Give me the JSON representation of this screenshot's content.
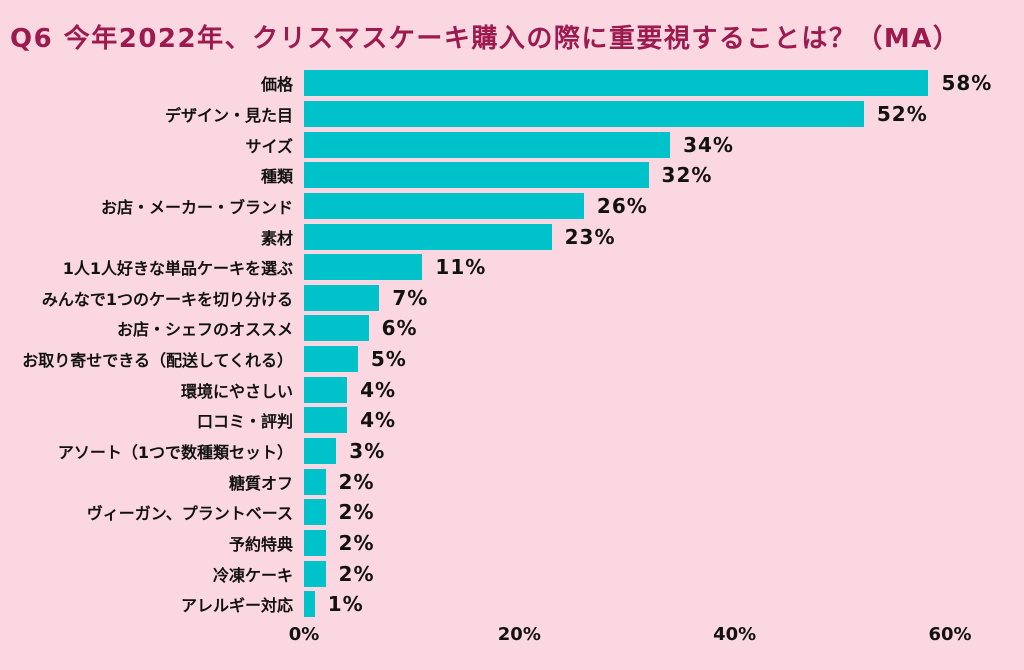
{
  "chart_data": {
    "type": "bar",
    "orientation": "horizontal",
    "title": "Q6 今年2022年、クリスマスケーキ購入の際に重要視することは？（MA）",
    "categories": [
      "価格",
      "デザイン・見た目",
      "サイズ",
      "種類",
      "お店・メーカー・ブランド",
      "素材",
      "1人1人好きな単品ケーキを選ぶ",
      "みんなで1つのケーキを切り分ける",
      "お店・シェフのオススメ",
      "お取り寄せできる（配送してくれる）",
      "環境にやさしい",
      "口コミ・評判",
      "アソート（1つで数種類セット）",
      "糖質オフ",
      "ヴィーガン、プラントベース",
      "予約特典",
      "冷凍ケーキ",
      "アレルギー対応"
    ],
    "values": [
      58,
      52,
      34,
      32,
      26,
      23,
      11,
      7,
      6,
      5,
      4,
      4,
      3,
      2,
      2,
      2,
      2,
      1
    ],
    "unit": "%",
    "xlabel": "",
    "ylabel": "",
    "xlim": [
      0,
      60
    ],
    "x_ticks": [
      {
        "value": 0,
        "label": "0%"
      },
      {
        "value": 20,
        "label": "20%"
      },
      {
        "value": 40,
        "label": "40%"
      },
      {
        "value": 60,
        "label": "60%"
      }
    ],
    "grid": false,
    "legend": false,
    "colors": {
      "background": "#fbd7e2",
      "bar": "#00c2cb",
      "title": "#9d1a4e",
      "text": "#121212"
    }
  }
}
